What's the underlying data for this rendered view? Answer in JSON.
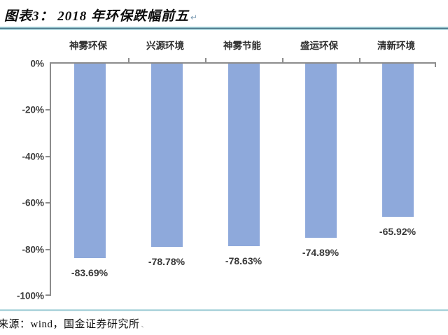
{
  "header": {
    "title": "图表3：  2018 年环保跌幅前五",
    "return_mark": "↵"
  },
  "chart_data": {
    "type": "bar",
    "title": "2018 年环保跌幅前五",
    "categories": [
      "神雾环保",
      "兴源环境",
      "神雾节能",
      "盛运环保",
      "清新环境"
    ],
    "values": [
      -83.69,
      -78.78,
      -78.63,
      -74.89,
      -65.92
    ],
    "data_labels": [
      "-83.69%",
      "-78.78%",
      "-78.63%",
      "-74.89%",
      "-65.92%"
    ],
    "y_ticks": [
      "0%",
      "-20%",
      "-40%",
      "-60%",
      "-80%",
      "-100%"
    ],
    "ylim": [
      0,
      -100
    ],
    "xlabel": "",
    "ylabel": "",
    "grid": "off",
    "legend": "none",
    "category_axis_position": "top",
    "data_label_position": "below-bar",
    "colors": {
      "bar": "#8EA9DB",
      "axis": "#8C8C8C",
      "divider_dark": "#33586E",
      "divider_light": "#C4E4EA",
      "label_text": "#383838"
    }
  },
  "footer": {
    "source": "来源：wind，国金证券研究所",
    "return_mark": "、"
  }
}
